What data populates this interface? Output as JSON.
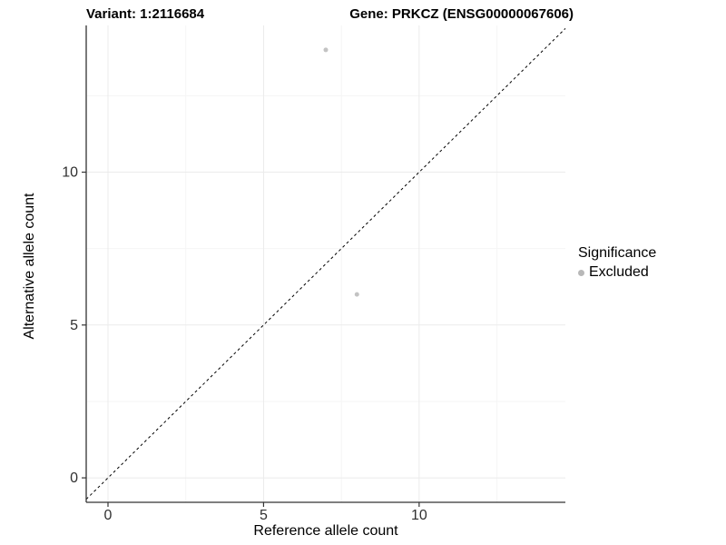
{
  "figure": {
    "background": "#ffffff"
  },
  "chart_data": {
    "type": "scatter",
    "title_left": "Variant: 1:2116684",
    "title_right": "Gene: PRKCZ (ENSG00000067606)",
    "xlabel": "Reference allele count",
    "ylabel": "Alternative allele count",
    "xlim": [
      -0.7,
      14.7
    ],
    "ylim": [
      -0.8,
      14.8
    ],
    "xticks": [
      0,
      5,
      10
    ],
    "yticks": [
      0,
      5,
      10
    ],
    "xminor": [
      2.5,
      7.5,
      12.5
    ],
    "yminor": [
      2.5,
      7.5,
      12.5
    ],
    "grid": {
      "major_color": "#ebebeb",
      "minor_color": "#f5f5f5"
    },
    "axis_color": "#333333",
    "tick_label_color": "#303030",
    "identity_line": {
      "equation": "y = x",
      "style": "dashed",
      "color": "#000000"
    },
    "point_radius": 2.5,
    "series": [
      {
        "name": "Excluded",
        "color": "#c3c3c3",
        "points": [
          {
            "x": 7,
            "y": 14
          },
          {
            "x": 8,
            "y": 6
          }
        ]
      }
    ],
    "legend": {
      "title": "Significance",
      "position": "right",
      "items": [
        {
          "label": "Excluded",
          "color": "#b8b8b8"
        }
      ]
    }
  }
}
